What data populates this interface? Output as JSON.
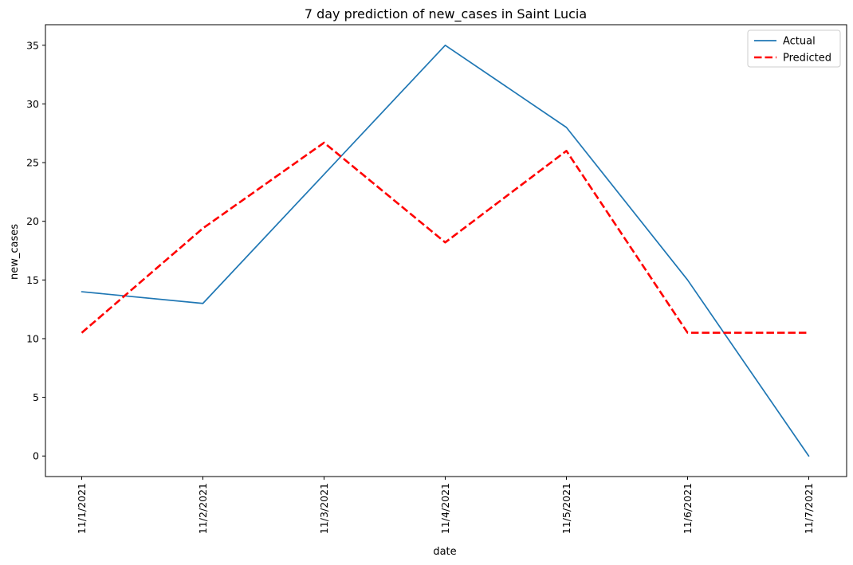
{
  "chart_data": {
    "type": "line",
    "title": "7 day prediction of new_cases in Saint Lucia",
    "xlabel": "date",
    "ylabel": "new_cases",
    "categories": [
      "11/1/2021",
      "11/2/2021",
      "11/3/2021",
      "11/4/2021",
      "11/5/2021",
      "11/6/2021",
      "11/7/2021"
    ],
    "series": [
      {
        "name": "Actual",
        "values": [
          14,
          13,
          24,
          35,
          28,
          15,
          0
        ],
        "color": "#1f77b4",
        "style": "solid"
      },
      {
        "name": "Predicted",
        "values": [
          10.5,
          19.4,
          26.7,
          18.2,
          26.0,
          10.5,
          10.5
        ],
        "color": "#ff0000",
        "style": "dashed"
      }
    ],
    "ylim": [
      -1.75,
      36.75
    ],
    "yticks": [
      0,
      5,
      10,
      15,
      20,
      25,
      30,
      35
    ],
    "grid": false,
    "legend": "top-right"
  }
}
